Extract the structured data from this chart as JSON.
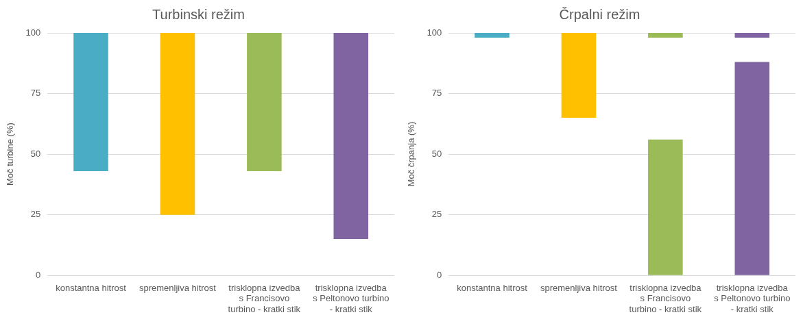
{
  "chart_data": [
    {
      "type": "bar",
      "title": "Turbinski režim",
      "ylabel": "Moč turbine (%)",
      "categories": [
        "konstantna hitrost",
        "spremenljiva hitrost",
        "trisklopna izvedba s Francisovo turbino - kratki stik",
        "trisklopna izvedba s Peltonovo turbino - kratki stik"
      ],
      "series": [
        {
          "colors": [
            "#4bacc6",
            "#ffc000",
            "#9bbb59",
            "#8064a2"
          ],
          "base": [
            43,
            25,
            43,
            15
          ],
          "values": [
            57,
            75,
            57,
            85
          ]
        }
      ],
      "ylim": [
        0,
        100
      ],
      "yticks": [
        0,
        25,
        50,
        75,
        100
      ],
      "grid": "y",
      "legend": false
    },
    {
      "type": "bar",
      "title": "Črpalni režim",
      "ylabel": "Moč črpanja (%)",
      "categories": [
        "konstantna hitrost",
        "spremenljiva hitrost",
        "trisklopna izvedba s Francisovo turbino - kratki stik",
        "trisklopna izvedba s Peltonovo turbino - kratki stik"
      ],
      "series": [
        {
          "colors": [
            "#4bacc6",
            "#ffc000",
            "#9bbb59",
            "#8064a2"
          ],
          "base": [
            98,
            65,
            98,
            98
          ],
          "values": [
            2,
            35,
            2,
            2
          ]
        },
        {
          "colors": [
            "#4bacc6",
            "#ffc000",
            "#9bbb59",
            "#8064a2"
          ],
          "base": [
            null,
            null,
            0,
            0
          ],
          "values": [
            null,
            null,
            56,
            88
          ]
        }
      ],
      "ylim": [
        0,
        100
      ],
      "yticks": [
        0,
        25,
        50,
        75,
        100
      ],
      "grid": "y",
      "legend": false
    }
  ]
}
